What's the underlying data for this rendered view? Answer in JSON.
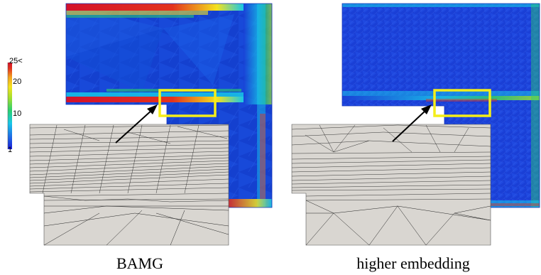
{
  "colorbar": {
    "ticks": [
      "25<",
      "20",
      "10",
      "1"
    ],
    "gradient": [
      "#1b1bd9",
      "#1e6fe6",
      "#18c7e8",
      "#2bd06e",
      "#a8e02b",
      "#f4e21e",
      "#f2a21e",
      "#e3331e",
      "#d3122a"
    ]
  },
  "panels": [
    {
      "caption": "BAMG"
    },
    {
      "caption": "higher embedding"
    }
  ],
  "colors": {
    "mesh_blue": "#1a3fd6",
    "highlight_box": "#f4ee1a",
    "mesh_gray": "#d9d6d1",
    "mesh_line": "#222222"
  }
}
